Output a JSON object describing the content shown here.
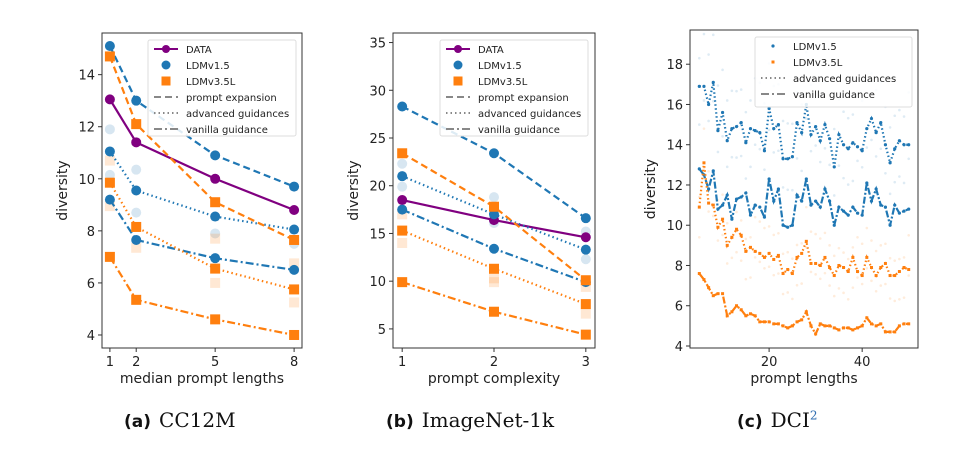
{
  "colors": {
    "data": "#800080",
    "ldm15": "#1f77b4",
    "ldm35": "#ff7f0e",
    "legend_line": "#888888"
  },
  "captions": [
    {
      "label": "(a)",
      "name": "CC12M",
      "sup": ""
    },
    {
      "label": "(b)",
      "name": "ImageNet-1k",
      "sup": ""
    },
    {
      "label": "(c)",
      "name": "DCI",
      "sup": "2"
    }
  ],
  "chart_data": [
    {
      "type": "line",
      "panel": "a",
      "title": "CC12M",
      "xlabel": "median prompt lengths",
      "ylabel": "diversity",
      "x": [
        1,
        2,
        5,
        8
      ],
      "xticks": [
        1,
        2,
        5,
        8
      ],
      "xlim": [
        0.7,
        8.3
      ],
      "yticks": [
        4,
        6,
        8,
        10,
        12,
        14
      ],
      "ylim": [
        3.5,
        15.6
      ],
      "grid": false,
      "legend_position": "top-right",
      "legend": [
        "DATA",
        "LDMv1.5",
        "LDMv3.5L",
        "prompt expansion",
        "advanced guidances",
        "vanilla guidance"
      ],
      "series": [
        {
          "name": "DATA",
          "model": "data",
          "style": "solid",
          "values": [
            13.05,
            11.4,
            10.0,
            8.8
          ]
        },
        {
          "name": "LDMv1.5 prompt expansion",
          "model": "ldm15",
          "style": "dashed",
          "values": [
            15.1,
            13.0,
            10.9,
            9.7
          ]
        },
        {
          "name": "LDMv1.5 advanced guidances",
          "model": "ldm15",
          "style": "dotted",
          "values": [
            11.05,
            9.55,
            8.55,
            8.05
          ]
        },
        {
          "name": "LDMv1.5 vanilla guidance",
          "model": "ldm15",
          "style": "dashdot",
          "values": [
            9.2,
            7.65,
            6.95,
            6.5
          ]
        },
        {
          "name": "LDMv3.5L prompt expansion",
          "model": "ldm35",
          "style": "dashed",
          "values": [
            14.7,
            12.1,
            9.1,
            7.65
          ]
        },
        {
          "name": "LDMv3.5L advanced guidances",
          "model": "ldm35",
          "style": "dotted",
          "values": [
            9.85,
            8.15,
            6.55,
            5.75
          ]
        },
        {
          "name": "LDMv3.5L vanilla guidance",
          "model": "ldm35",
          "style": "dashdot",
          "values": [
            7.0,
            5.35,
            4.6,
            4.0
          ]
        }
      ],
      "faded_points": [
        {
          "model": "ldm15",
          "x": 1,
          "y": 11.9
        },
        {
          "model": "ldm15",
          "x": 1,
          "y": 10.15
        },
        {
          "model": "ldm15",
          "x": 2,
          "y": 10.35
        },
        {
          "model": "ldm15",
          "x": 2,
          "y": 8.7
        },
        {
          "model": "ldm15",
          "x": 5,
          "y": 7.9
        },
        {
          "model": "ldm15",
          "x": 8,
          "y": 7.5
        },
        {
          "model": "ldm35",
          "x": 1,
          "y": 10.7
        },
        {
          "model": "ldm35",
          "x": 1,
          "y": 8.95
        },
        {
          "model": "ldm35",
          "x": 2,
          "y": 7.35
        },
        {
          "model": "ldm35",
          "x": 5,
          "y": 7.7
        },
        {
          "model": "ldm35",
          "x": 5,
          "y": 6.0
        },
        {
          "model": "ldm35",
          "x": 8,
          "y": 6.75
        },
        {
          "model": "ldm35",
          "x": 8,
          "y": 5.25
        }
      ]
    },
    {
      "type": "line",
      "panel": "b",
      "title": "ImageNet-1k",
      "xlabel": "prompt complexity",
      "ylabel": "diversity",
      "x": [
        1,
        2,
        3
      ],
      "xticks": [
        1,
        2,
        3
      ],
      "xlim": [
        0.9,
        3.1
      ],
      "yticks": [
        5,
        10,
        15,
        20,
        25,
        30,
        35
      ],
      "ylim": [
        3.0,
        36.0
      ],
      "grid": false,
      "legend_position": "top-right",
      "legend": [
        "DATA",
        "LDMv1.5",
        "LDMv3.5L",
        "prompt expansion",
        "advanced guidances",
        "vanilla guidance"
      ],
      "series": [
        {
          "name": "DATA",
          "model": "data",
          "style": "solid",
          "values": [
            18.5,
            16.4,
            14.6
          ]
        },
        {
          "name": "LDMv1.5 prompt expansion",
          "model": "ldm15",
          "style": "dashed",
          "values": [
            28.3,
            23.4,
            16.6
          ]
        },
        {
          "name": "LDMv1.5 advanced guidances",
          "model": "ldm15",
          "style": "dotted",
          "values": [
            21.0,
            17.0,
            13.3
          ]
        },
        {
          "name": "LDMv1.5 vanilla guidance",
          "model": "ldm15",
          "style": "dashdot",
          "values": [
            17.5,
            13.4,
            9.9
          ]
        },
        {
          "name": "LDMv3.5L prompt expansion",
          "model": "ldm35",
          "style": "dashed",
          "values": [
            23.4,
            17.8,
            10.1
          ]
        },
        {
          "name": "LDMv3.5L advanced guidances",
          "model": "ldm35",
          "style": "dotted",
          "values": [
            15.3,
            11.3,
            7.6
          ]
        },
        {
          "name": "LDMv3.5L vanilla guidance",
          "model": "ldm35",
          "style": "dashdot",
          "values": [
            9.9,
            6.8,
            4.4
          ]
        }
      ],
      "faded_points": [
        {
          "model": "ldm15",
          "x": 1,
          "y": 22.3
        },
        {
          "model": "ldm15",
          "x": 1,
          "y": 19.9
        },
        {
          "model": "ldm15",
          "x": 2,
          "y": 18.8
        },
        {
          "model": "ldm15",
          "x": 2,
          "y": 16.1
        },
        {
          "model": "ldm15",
          "x": 3,
          "y": 15.2
        },
        {
          "model": "ldm15",
          "x": 3,
          "y": 12.3
        },
        {
          "model": "ldm35",
          "x": 1,
          "y": 17.0
        },
        {
          "model": "ldm35",
          "x": 1,
          "y": 14.0
        },
        {
          "model": "ldm35",
          "x": 2,
          "y": 10.3
        },
        {
          "model": "ldm35",
          "x": 2,
          "y": 9.9
        },
        {
          "model": "ldm35",
          "x": 3,
          "y": 9.4
        },
        {
          "model": "ldm35",
          "x": 3,
          "y": 6.6
        }
      ]
    },
    {
      "type": "line",
      "panel": "c",
      "title": "DCI",
      "xlabel": "prompt lengths",
      "ylabel": "diversity",
      "xticks": [
        20,
        40
      ],
      "xlim": [
        3,
        52
      ],
      "yticks": [
        4,
        6,
        8,
        10,
        12,
        14,
        16,
        18
      ],
      "ylim": [
        3.9,
        19.7
      ],
      "grid": false,
      "legend_position": "top-right",
      "legend": [
        "LDMv1.5",
        "LDMv3.5L",
        "advanced guidances",
        "vanilla guidance"
      ],
      "x": [
        5,
        6,
        7,
        8,
        9,
        10,
        11,
        12,
        13,
        14,
        15,
        16,
        17,
        18,
        19,
        20,
        21,
        22,
        23,
        24,
        25,
        26,
        27,
        28,
        29,
        30,
        31,
        32,
        33,
        34,
        35,
        36,
        37,
        38,
        39,
        40,
        41,
        42,
        43,
        44,
        45,
        46,
        47,
        48,
        49,
        50
      ],
      "series": [
        {
          "name": "LDMv1.5 advanced guidances",
          "model": "ldm15",
          "style": "dotted",
          "values": [
            16.9,
            16.9,
            16.0,
            17.1,
            14.7,
            15.6,
            14.2,
            14.8,
            14.9,
            15.1,
            14.1,
            14.8,
            14.7,
            14.6,
            13.7,
            15.8,
            14.8,
            15.0,
            13.3,
            13.3,
            13.4,
            15.1,
            14.6,
            16.0,
            14.5,
            14.9,
            14.2,
            15.0,
            14.3,
            12.9,
            14.5,
            14.0,
            13.8,
            14.1,
            13.9,
            13.7,
            14.8,
            15.3,
            14.6,
            15.1,
            14.0,
            13.1,
            13.8,
            14.2,
            14.0,
            14.0
          ]
        },
        {
          "name": "LDMv1.5 vanilla guidance",
          "model": "ldm15",
          "style": "dashdot",
          "values": [
            12.8,
            12.5,
            11.8,
            12.7,
            10.8,
            11.0,
            11.5,
            10.3,
            11.3,
            11.4,
            11.6,
            10.5,
            11.0,
            10.9,
            10.4,
            12.3,
            11.2,
            11.8,
            10.0,
            9.9,
            10.0,
            11.5,
            11.2,
            12.3,
            11.0,
            11.2,
            10.9,
            11.8,
            11.2,
            10.0,
            10.9,
            10.7,
            10.5,
            10.9,
            10.6,
            10.5,
            12.1,
            11.2,
            11.8,
            11.0,
            10.9,
            10.0,
            11.0,
            10.6,
            10.7,
            10.8
          ]
        },
        {
          "name": "LDMv3.5L advanced guidances",
          "model": "ldm35",
          "style": "dotted",
          "values": [
            10.9,
            13.1,
            11.1,
            11.0,
            9.9,
            10.3,
            9.0,
            9.4,
            9.8,
            9.5,
            8.7,
            8.9,
            8.7,
            8.6,
            8.4,
            8.6,
            8.3,
            8.5,
            7.6,
            7.8,
            7.6,
            8.4,
            8.6,
            9.2,
            8.1,
            8.1,
            8.0,
            8.4,
            7.9,
            7.5,
            8.0,
            7.9,
            7.7,
            8.4,
            7.7,
            7.5,
            8.4,
            7.9,
            7.5,
            7.9,
            8.1,
            7.5,
            7.5,
            7.7,
            7.9,
            7.8
          ]
        },
        {
          "name": "LDMv3.5L vanilla guidance",
          "model": "ldm35",
          "style": "dashdot",
          "values": [
            7.6,
            7.3,
            6.9,
            6.5,
            6.6,
            6.6,
            5.5,
            5.7,
            6.0,
            5.8,
            5.5,
            5.6,
            5.5,
            5.2,
            5.2,
            5.2,
            5.1,
            5.1,
            5.0,
            4.9,
            5.0,
            5.2,
            5.3,
            5.7,
            5.0,
            4.6,
            5.1,
            5.0,
            5.0,
            4.9,
            4.8,
            4.9,
            4.9,
            4.8,
            4.9,
            5.0,
            5.4,
            5.1,
            5.0,
            5.1,
            4.7,
            4.7,
            4.7,
            5.0,
            5.1,
            5.1
          ]
        }
      ],
      "faded_bands": [
        {
          "model": "ldm15",
          "offset": 2.0
        },
        {
          "model": "ldm15",
          "offset": -1.3
        },
        {
          "model": "ldm35",
          "offset": 1.1
        },
        {
          "model": "ldm35",
          "offset": -0.9
        }
      ]
    }
  ]
}
